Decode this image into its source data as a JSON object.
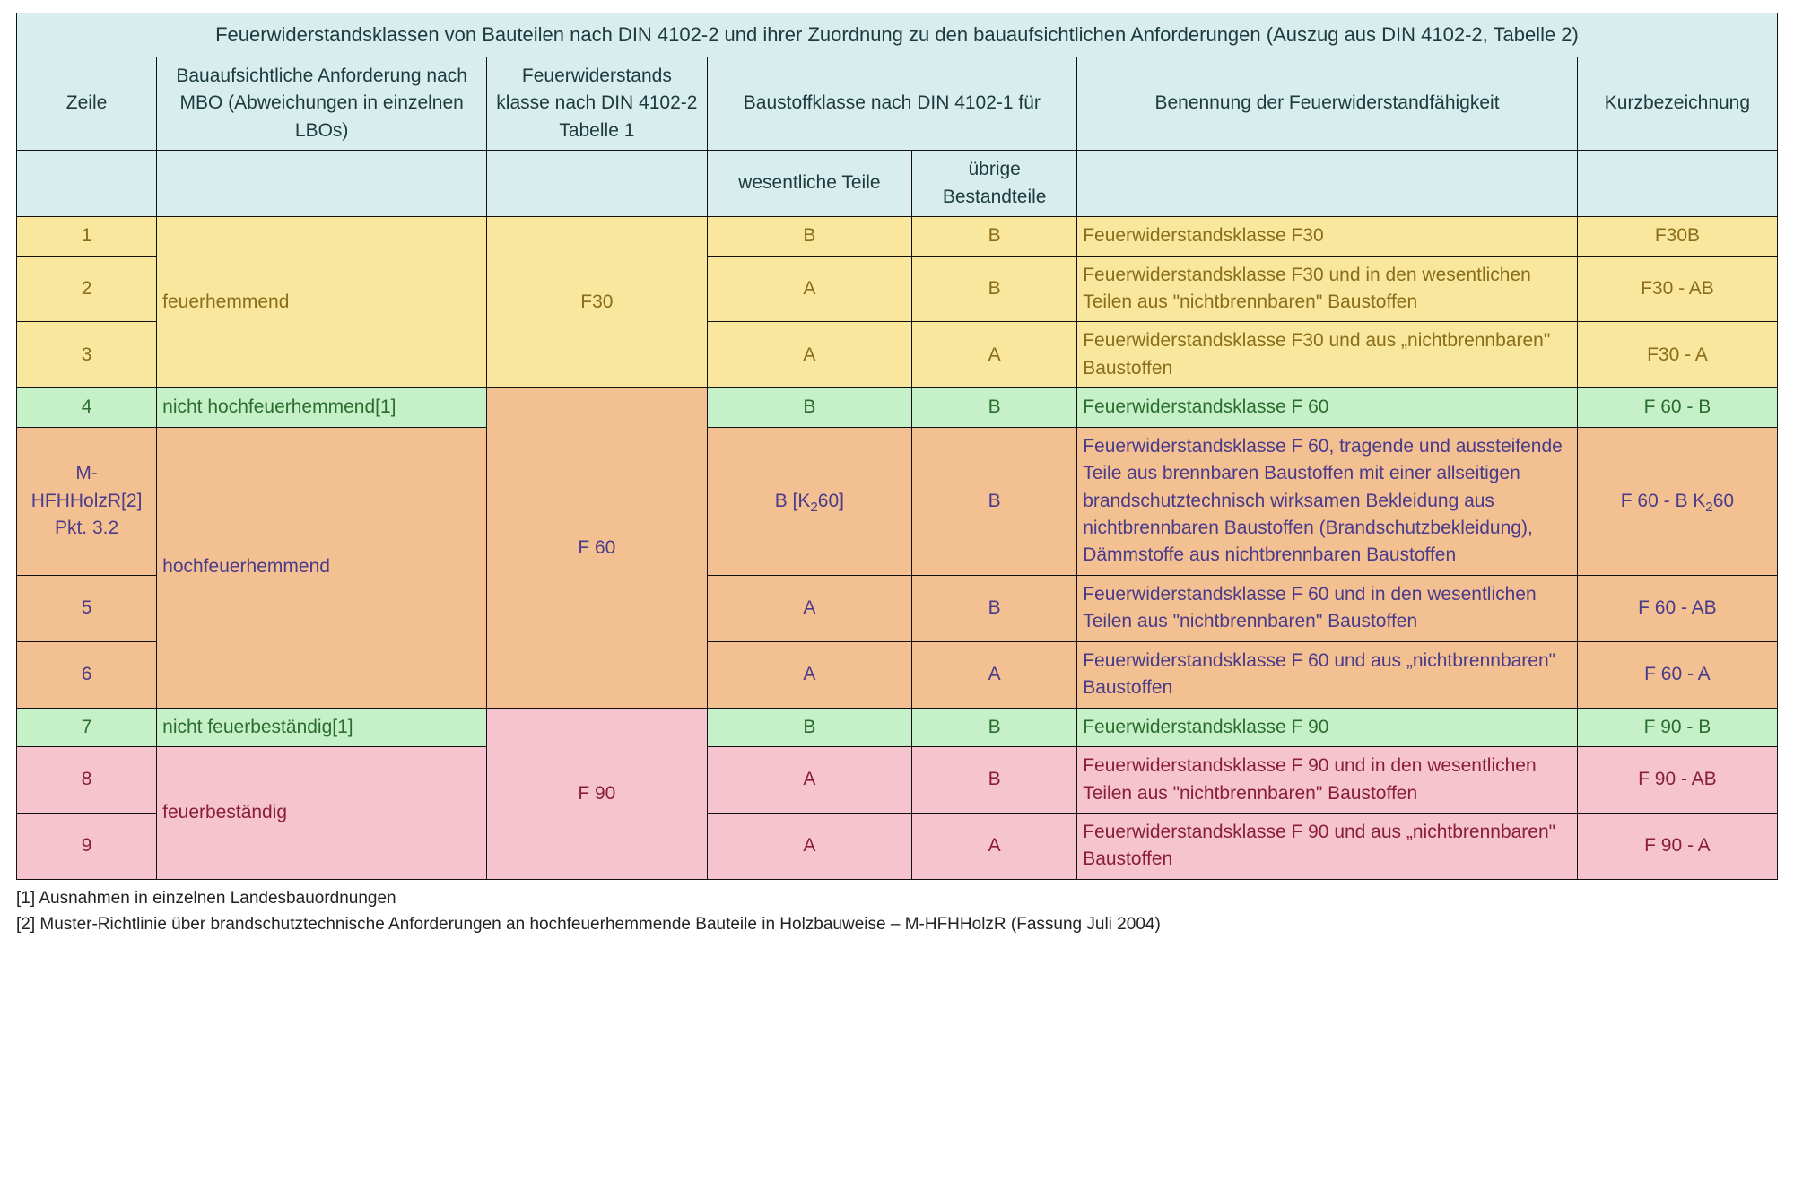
{
  "colors": {
    "header_bg": "#d7edee",
    "header_text": "#1c3b3c",
    "yellow_bg": "#f8e79d",
    "yellow_text": "#8a6d1a",
    "green_bg": "#c6f0c8",
    "green_text": "#2a6d2f",
    "orange_bg": "#f3c092",
    "orange_text": "#4a3a8a",
    "pink_bg": "#f6c4cf",
    "pink_text": "#8a1d3a",
    "border": "#111111",
    "foot_text": "#222222"
  },
  "title": "Feuerwiderstandsklassen von Bauteilen nach DIN 4102-2 und ihrer Zuordnung zu den bauaufsichtlichen Anforderungen (Auszug aus DIN 4102-2, Tabelle 2)",
  "columns": {
    "zeile": "Zeile",
    "mbo": "Bauaufsichtliche Anforderung nach MBO (Abweichungen in einzelnen LBOs)",
    "fkl": "Feuerwiderstands klasse nach DIN 4102-2 Tabelle 1",
    "bstk": "Baustoffklasse nach DIN 4102-1 für",
    "bstk_w": "wesentliche Teile",
    "bstk_u": "übrige Bestandteile",
    "benennung": "Benennung der Feuerwiderstandfähigkeit",
    "kurz": "Kurzbezeichnung"
  },
  "groups": {
    "g1": {
      "mbo": "feuerhemmend",
      "fkl": "F30"
    },
    "g2": {
      "mbo_a": "nicht hochfeuerhemmend[1]",
      "mbo_b": "hochfeuerhemmend",
      "fkl": "F 60"
    },
    "g3": {
      "mbo_a": "nicht feuerbeständig[1]",
      "mbo_b": "feuerbeständig",
      "fkl": "F 90"
    }
  },
  "rows": {
    "r1": {
      "zeile": "1",
      "wt": "B",
      "ut": "B",
      "ben": "Feuerwiderstandsklasse F30",
      "kurz": "F30B"
    },
    "r2": {
      "zeile": "2",
      "wt": "A",
      "ut": "B",
      "ben": "Feuerwiderstandsklasse F30 und in den wesentlichen Teilen aus \"nichtbrennbaren\" Baustoffen",
      "kurz": "F30 - AB"
    },
    "r3": {
      "zeile": "3",
      "wt": "A",
      "ut": "A",
      "ben": "Feuerwiderstandsklasse F30 und aus „nichtbrennbaren\" Baustoffen",
      "kurz": "F30 - A"
    },
    "r4": {
      "zeile": "4",
      "wt": "B",
      "ut": "B",
      "ben": "Feuerwiderstandsklasse F 60",
      "kurz": "F 60 - B"
    },
    "r5": {
      "zeile": "M-HFHHolzR[2] Pkt. 3.2",
      "wt_html": "B [K<sub>2</sub>60]",
      "ut": "B",
      "ben": "Feuerwiderstandsklasse F 60, tragende und aussteifende Teile aus brennbaren Baustoffen mit einer allseitigen brandschutztechnisch wirksamen Bekleidung aus nichtbrennbaren Baustoffen (Brandschutzbekleidung), Dämmstoffe aus nichtbrennbaren Baustoffen",
      "kurz_html": "F 60 - B K<sub>2</sub>60"
    },
    "r6": {
      "zeile": "5",
      "wt": "A",
      "ut": "B",
      "ben": "Feuerwiderstandsklasse F 60 und in den wesentlichen Teilen aus \"nichtbrennbaren\" Baustoffen",
      "kurz": "F 60 - AB"
    },
    "r7": {
      "zeile": "6",
      "wt": "A",
      "ut": "A",
      "ben": "Feuerwiderstandsklasse F 60 und aus „nichtbrennbaren\" Baustoffen",
      "kurz": "F 60 - A"
    },
    "r8": {
      "zeile": "7",
      "wt": "B",
      "ut": "B",
      "ben": "Feuerwiderstandsklasse F 90",
      "kurz": "F 90 - B"
    },
    "r9": {
      "zeile": "8",
      "wt": "A",
      "ut": "B",
      "ben": "Feuerwiderstandsklasse F 90 und in den wesentlichen Teilen aus \"nichtbrennbaren\" Baustoffen",
      "kurz": "F 90 - AB"
    },
    "r10": {
      "zeile": "9",
      "wt": "A",
      "ut": "A",
      "ben": "Feuerwiderstandsklasse F 90 und aus „nichtbrennbaren\" Baustoffen",
      "kurz": "F 90 - A"
    }
  },
  "footnotes": {
    "f1": "[1] Ausnahmen in einzelnen Landesbauordnungen",
    "f2": "[2] Muster-Richtlinie über brandschutztechnische Anforderungen an hochfeuerhemmende Bauteile in Holzbauweise – M-HFHHolzR  (Fassung Juli 2004)"
  }
}
